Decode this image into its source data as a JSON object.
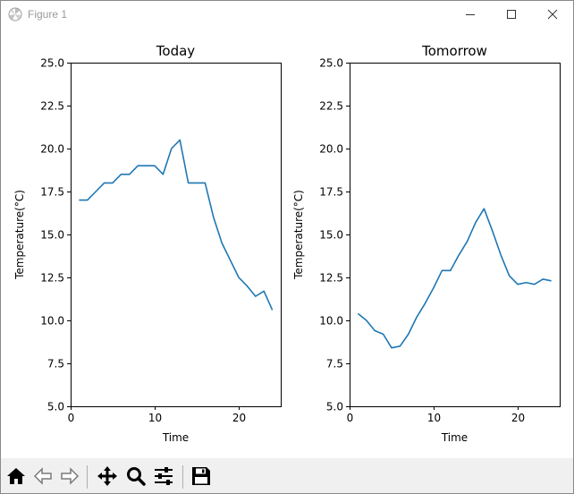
{
  "window": {
    "title": "Figure 1"
  },
  "icons": {
    "minimize": "minimize-icon",
    "maximize": "maximize-icon",
    "close": "close-icon",
    "home": "home-icon",
    "back": "back-arrow-icon",
    "forward": "forward-arrow-icon",
    "pan": "pan-move-icon",
    "zoom": "zoom-magnifier-icon",
    "configure": "configure-subplots-icon",
    "save": "save-floppy-icon"
  },
  "colors": {
    "line": "#1f77b4",
    "axis": "#000000",
    "toolbar": "#f0f0f0"
  },
  "chart_data": [
    {
      "type": "line",
      "title": "Today",
      "xlabel": "Time",
      "ylabel": "Temperature(°C)",
      "xlim": [
        0,
        25
      ],
      "ylim": [
        5.0,
        25.0
      ],
      "xticks": [
        0,
        10,
        20
      ],
      "xtick_labels": [
        "0",
        "10",
        "20"
      ],
      "yticks": [
        5.0,
        7.5,
        10.0,
        12.5,
        15.0,
        17.5,
        20.0,
        22.5,
        25.0
      ],
      "ytick_labels": [
        "5.0",
        "7.5",
        "10.0",
        "12.5",
        "15.0",
        "17.5",
        "20.0",
        "22.5",
        "25.0"
      ],
      "grid": false,
      "x": [
        1,
        2,
        3,
        4,
        5,
        6,
        7,
        8,
        9,
        10,
        11,
        12,
        13,
        14,
        15,
        16,
        17,
        18,
        19,
        20,
        21,
        22,
        23,
        24
      ],
      "y": [
        17.0,
        17.0,
        17.5,
        18.0,
        18.0,
        18.5,
        18.5,
        19.0,
        19.0,
        19.0,
        18.5,
        20.0,
        20.5,
        18.0,
        18.0,
        18.0,
        16.0,
        14.5,
        13.5,
        12.5,
        12.0,
        11.4,
        11.7,
        10.6
      ]
    },
    {
      "type": "line",
      "title": "Tomorrow",
      "xlabel": "Time",
      "ylabel": "Temperature(°C)",
      "xlim": [
        0,
        25
      ],
      "ylim": [
        5.0,
        25.0
      ],
      "xticks": [
        0,
        10,
        20
      ],
      "xtick_labels": [
        "0",
        "10",
        "20"
      ],
      "yticks": [
        5.0,
        7.5,
        10.0,
        12.5,
        15.0,
        17.5,
        20.0,
        22.5,
        25.0
      ],
      "ytick_labels": [
        "5.0",
        "7.5",
        "10.0",
        "12.5",
        "15.0",
        "17.5",
        "20.0",
        "22.5",
        "25.0"
      ],
      "grid": false,
      "x": [
        1,
        2,
        3,
        4,
        5,
        6,
        7,
        8,
        9,
        10,
        11,
        12,
        13,
        14,
        15,
        16,
        17,
        18,
        19,
        20,
        21,
        22,
        23,
        24
      ],
      "y": [
        10.4,
        10.0,
        9.4,
        9.2,
        8.4,
        8.5,
        9.2,
        10.2,
        11.0,
        11.9,
        12.9,
        12.9,
        13.8,
        14.6,
        15.7,
        16.5,
        15.2,
        13.8,
        12.6,
        12.1,
        12.2,
        12.1,
        12.4,
        12.3
      ]
    }
  ]
}
